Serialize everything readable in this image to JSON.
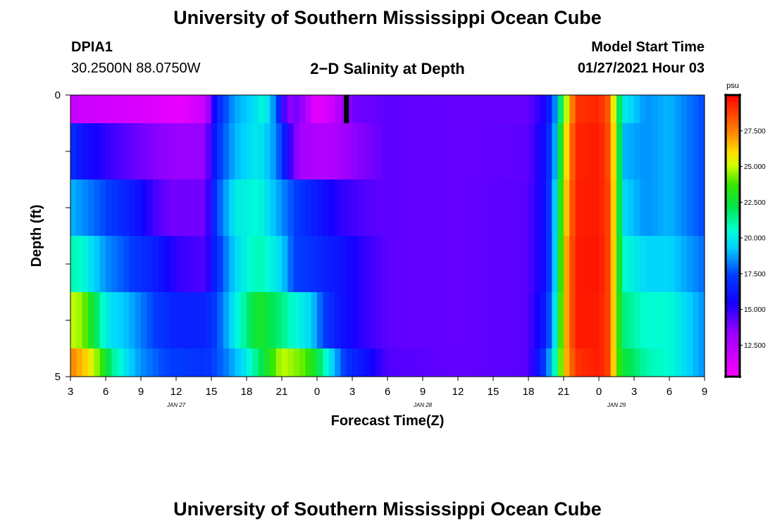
{
  "header": {
    "title_top": "University of Southern Mississippi Ocean Cube",
    "title_bottom": "University of Southern Mississippi Ocean Cube",
    "station_id": "DPIA1",
    "station_coords": "30.2500N 88.0750W",
    "plot_title": "2−D Salinity at Depth",
    "model_label": "Model Start Time",
    "model_time": "01/27/2021 Hour 03"
  },
  "chart_data": {
    "type": "heatmap",
    "title": "2−D Salinity at Depth",
    "xlabel": "Forecast Time(Z)",
    "ylabel": "Depth (ft)",
    "x_ticks": [
      "3",
      "6",
      "9",
      "12",
      "15",
      "18",
      "21",
      "0",
      "3",
      "6",
      "9",
      "12",
      "15",
      "18",
      "21",
      "0",
      "3",
      "6",
      "9"
    ],
    "date_labels": [
      {
        "label": "JAN 27",
        "tick_index": 3
      },
      {
        "label": "JAN 28",
        "tick_index": 10
      },
      {
        "label": "JAN 29",
        "tick_index": 15.5
      }
    ],
    "y_ticks": [
      "0",
      "",
      "",
      "",
      "",
      "5"
    ],
    "y_range": [
      0,
      5
    ],
    "hours": [
      3,
      57
    ],
    "colorbar": {
      "unit": "psu",
      "min": 10.3,
      "max": 30.0,
      "ticks": [
        "12.500",
        "15.000",
        "17.500",
        "20.000",
        "22.500",
        "25.000",
        "27.500"
      ],
      "tick_values": [
        12.5,
        15.0,
        17.5,
        20.0,
        22.5,
        25.0,
        27.5
      ]
    },
    "depth_layers": [
      {
        "name": "0.0-0.5 ft",
        "depth_span": [
          0,
          0.5
        ],
        "knots": [
          [
            3,
            12.0
          ],
          [
            4,
            11.8
          ],
          [
            7,
            11.6
          ],
          [
            10,
            11.3
          ],
          [
            12.5,
            11.0
          ],
          [
            14.5,
            12.0
          ],
          [
            15.5,
            16.5
          ],
          [
            17,
            18.8
          ],
          [
            18.5,
            19.5
          ],
          [
            19.5,
            20.5
          ],
          [
            20.5,
            18.0
          ],
          [
            21,
            15.5
          ],
          [
            21.5,
            13.5
          ],
          [
            22.5,
            14.0
          ],
          [
            23.8,
            11.0
          ],
          [
            25,
            11.5
          ],
          [
            27,
            14.0
          ],
          [
            30,
            14.3
          ],
          [
            36,
            14.2
          ],
          [
            42,
            14.2
          ],
          [
            43.5,
            15.5
          ],
          [
            44.3,
            18.5
          ],
          [
            45,
            23.5
          ],
          [
            46,
            29.0
          ],
          [
            48,
            29.3
          ],
          [
            49,
            28.0
          ],
          [
            49.5,
            23.0
          ],
          [
            50.2,
            20.0
          ],
          [
            52,
            18.5
          ],
          [
            54,
            19.0
          ],
          [
            57,
            17.5
          ]
        ]
      },
      {
        "name": "0.5-1.5 ft",
        "depth_span": [
          0.5,
          1.5
        ],
        "knots": [
          [
            3,
            17.0
          ],
          [
            4,
            16.0
          ],
          [
            6,
            15.0
          ],
          [
            8,
            14.3
          ],
          [
            11,
            13.5
          ],
          [
            13,
            13.3
          ],
          [
            14.5,
            13.5
          ],
          [
            15.5,
            17.0
          ],
          [
            17,
            19.0
          ],
          [
            19,
            20.0
          ],
          [
            20.5,
            18.5
          ],
          [
            21.5,
            15.5
          ],
          [
            22.5,
            13.0
          ],
          [
            25,
            12.5
          ],
          [
            27,
            13.5
          ],
          [
            30,
            14.3
          ],
          [
            36,
            14.2
          ],
          [
            42,
            14.3
          ],
          [
            43.5,
            16.0
          ],
          [
            44.3,
            19.0
          ],
          [
            45,
            25.0
          ],
          [
            46,
            29.3
          ],
          [
            48,
            29.5
          ],
          [
            49,
            28.3
          ],
          [
            49.5,
            24.0
          ],
          [
            50.2,
            19.0
          ],
          [
            52,
            18.5
          ],
          [
            54,
            19.0
          ],
          [
            57,
            17.5
          ]
        ]
      },
      {
        "name": "1.5-2.5 ft",
        "depth_span": [
          1.5,
          2.5
        ],
        "knots": [
          [
            3,
            19.0
          ],
          [
            5,
            18.0
          ],
          [
            7,
            17.0
          ],
          [
            9,
            15.8
          ],
          [
            10,
            14.8
          ],
          [
            11.5,
            14.0
          ],
          [
            14.5,
            14.0
          ],
          [
            15.5,
            17.5
          ],
          [
            17,
            20.0
          ],
          [
            19,
            20.5
          ],
          [
            21,
            18.5
          ],
          [
            22,
            17.5
          ],
          [
            23.5,
            16.5
          ],
          [
            26,
            15.0
          ],
          [
            28,
            14.5
          ],
          [
            30,
            14.3
          ],
          [
            36,
            14.2
          ],
          [
            42,
            14.4
          ],
          [
            43.5,
            16.0
          ],
          [
            44.3,
            19.5
          ],
          [
            45,
            25.5
          ],
          [
            46,
            29.4
          ],
          [
            48,
            29.5
          ],
          [
            49,
            28.5
          ],
          [
            49.5,
            24.0
          ],
          [
            50.2,
            19.5
          ],
          [
            52,
            18.5
          ],
          [
            54,
            19.0
          ],
          [
            57,
            17.5
          ]
        ]
      },
      {
        "name": "2.5-3.5 ft",
        "depth_span": [
          2.5,
          3.5
        ],
        "knots": [
          [
            3,
            21.0
          ],
          [
            4,
            20.5
          ],
          [
            6,
            18.5
          ],
          [
            8,
            17.5
          ],
          [
            10,
            16.5
          ],
          [
            12,
            15.0
          ],
          [
            14.5,
            14.5
          ],
          [
            15.5,
            17.0
          ],
          [
            17,
            19.5
          ],
          [
            19,
            21.0
          ],
          [
            21,
            19.5
          ],
          [
            22,
            17.5
          ],
          [
            23.5,
            17.0
          ],
          [
            26,
            16.0
          ],
          [
            28,
            15.0
          ],
          [
            30,
            14.3
          ],
          [
            36,
            14.2
          ],
          [
            42,
            14.4
          ],
          [
            43.5,
            16.0
          ],
          [
            44.3,
            19.5
          ],
          [
            45,
            26.0
          ],
          [
            46,
            29.5
          ],
          [
            48,
            29.6
          ],
          [
            49,
            28.5
          ],
          [
            49.5,
            24.0
          ],
          [
            50.2,
            20.5
          ],
          [
            52,
            19.5
          ],
          [
            54,
            19.5
          ],
          [
            57,
            18.0
          ]
        ]
      },
      {
        "name": "3.5-4.5 ft",
        "depth_span": [
          3.5,
          4.5
        ],
        "knots": [
          [
            3,
            25.0
          ],
          [
            4,
            24.5
          ],
          [
            5,
            22.5
          ],
          [
            6,
            20.0
          ],
          [
            8,
            19.0
          ],
          [
            10,
            17.5
          ],
          [
            12,
            16.5
          ],
          [
            14.5,
            16.5
          ],
          [
            15.5,
            17.5
          ],
          [
            17,
            20.0
          ],
          [
            19,
            23.0
          ],
          [
            21,
            21.5
          ],
          [
            22,
            20.5
          ],
          [
            23.5,
            19.5
          ],
          [
            24.5,
            17.5
          ],
          [
            26,
            16.0
          ],
          [
            28,
            15.0
          ],
          [
            30,
            14.3
          ],
          [
            36,
            14.2
          ],
          [
            42,
            14.4
          ],
          [
            43.5,
            16.5
          ],
          [
            44.3,
            20.0
          ],
          [
            45,
            26.0
          ],
          [
            46,
            29.5
          ],
          [
            48,
            29.5
          ],
          [
            49,
            28.5
          ],
          [
            49.5,
            24.0
          ],
          [
            50.2,
            21.5
          ],
          [
            52,
            20.5
          ],
          [
            54,
            20.5
          ],
          [
            57,
            18.5
          ]
        ]
      },
      {
        "name": "4.5-5.0 ft",
        "depth_span": [
          4.5,
          5.0
        ],
        "knots": [
          [
            3,
            27.5
          ],
          [
            4.5,
            26.0
          ],
          [
            5.5,
            24.0
          ],
          [
            6.5,
            21.5
          ],
          [
            7.5,
            20.0
          ],
          [
            9,
            18.5
          ],
          [
            11,
            17.5
          ],
          [
            14.5,
            17.0
          ],
          [
            16,
            18.0
          ],
          [
            18,
            20.0
          ],
          [
            19.5,
            22.5
          ],
          [
            21,
            25.0
          ],
          [
            23,
            24.0
          ],
          [
            24,
            22.5
          ],
          [
            25,
            20.0
          ],
          [
            26.5,
            17.0
          ],
          [
            28,
            16.0
          ],
          [
            30,
            14.5
          ],
          [
            36,
            14.2
          ],
          [
            42,
            14.4
          ],
          [
            43.5,
            17.5
          ],
          [
            44.3,
            21.0
          ],
          [
            45,
            26.0
          ],
          [
            46,
            29.0
          ],
          [
            48,
            29.5
          ],
          [
            49,
            28.5
          ],
          [
            49.5,
            24.0
          ],
          [
            50.2,
            22.5
          ],
          [
            52,
            21.0
          ],
          [
            54,
            20.5
          ],
          [
            57,
            18.5
          ]
        ]
      }
    ],
    "missing_data": {
      "hour": 26.5,
      "depth_span": [
        0,
        0.5
      ]
    }
  }
}
